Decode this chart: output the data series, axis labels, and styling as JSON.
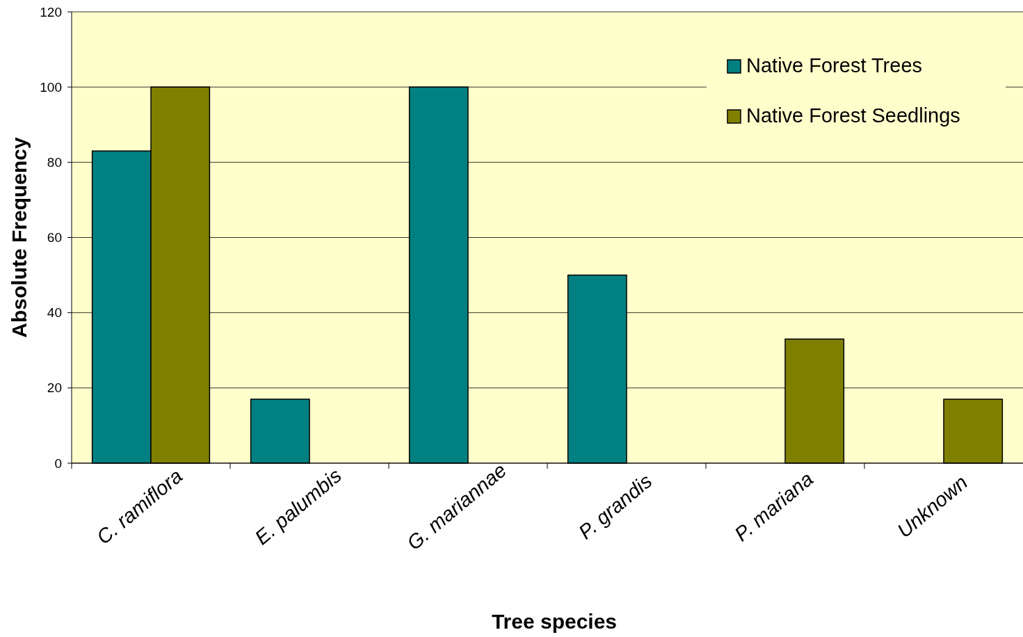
{
  "chart_data": {
    "type": "bar",
    "xlabel": "Tree species",
    "ylabel": "Absolute Frequency",
    "categories": [
      "C. ramiflora",
      "E. palumbis",
      "G. mariannae",
      "P. grandis",
      "P. mariana",
      "Unknown"
    ],
    "series": [
      {
        "name": "Native Forest Trees",
        "color": "#008080",
        "values": [
          83,
          17,
          100,
          50,
          null,
          null
        ]
      },
      {
        "name": "Native Forest Seedlings",
        "color": "#808000",
        "values": [
          100,
          null,
          null,
          null,
          33,
          17
        ]
      }
    ],
    "ylim": [
      0,
      120
    ],
    "yticks": [
      0,
      20,
      40,
      60,
      80,
      100,
      120
    ],
    "grid": "y",
    "legend": "top right"
  }
}
